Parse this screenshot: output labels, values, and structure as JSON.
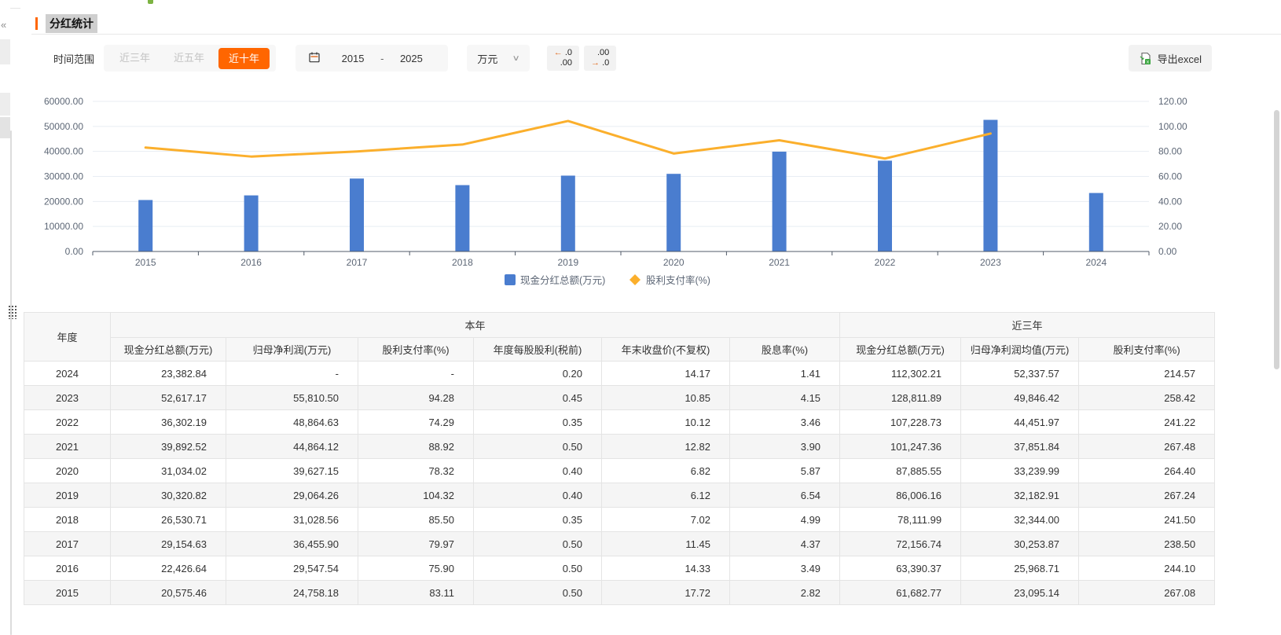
{
  "page": {
    "title": "分红统计",
    "collapse_icon": "«"
  },
  "toolbar": {
    "time_range_label": "时间范围",
    "range_options": [
      {
        "label": "近三年",
        "selected": false
      },
      {
        "label": "近五年",
        "selected": false
      },
      {
        "label": "近十年",
        "selected": true
      }
    ],
    "date_start": "2015",
    "date_separator": "-",
    "date_end": "2025",
    "unit_select": "万元",
    "unit_chevron": "∨",
    "decimal_decrease": {
      "arrow": "←",
      "top": ".0",
      "bottom": ".00"
    },
    "decimal_increase": {
      "top": ".00",
      "arrow": "→",
      "bottom": ".0"
    },
    "export_label": "导出excel"
  },
  "chart_data": {
    "type": "bar",
    "categories": [
      "2015",
      "2016",
      "2017",
      "2018",
      "2019",
      "2020",
      "2021",
      "2022",
      "2023",
      "2024"
    ],
    "series": [
      {
        "name": "现金分红总额(万元)",
        "type": "bar",
        "axis": "left",
        "color": "#4a7dcf",
        "values": [
          20575.46,
          22426.64,
          29154.63,
          26530.71,
          30320.82,
          31034.02,
          39892.52,
          36302.19,
          52617.17,
          23382.84
        ]
      },
      {
        "name": "股利支付率(%)",
        "type": "line",
        "axis": "right",
        "color": "#fbaf2c",
        "values": [
          83.11,
          75.9,
          79.97,
          85.5,
          104.32,
          78.32,
          88.92,
          74.29,
          94.28,
          null
        ]
      }
    ],
    "left_axis": {
      "min": 0,
      "max": 60000,
      "step": 10000
    },
    "right_axis": {
      "min": 0,
      "max": 120,
      "step": 20
    },
    "grid": true,
    "legend_position": "bottom"
  },
  "table": {
    "year_header": "年度",
    "col_groups": [
      {
        "label": "本年",
        "span": 6
      },
      {
        "label": "近三年",
        "span": 3
      }
    ],
    "columns": [
      "现金分红总额(万元)",
      "归母净利润(万元)",
      "股利支付率(%)",
      "年度每股股利(税前)",
      "年末收盘价(不复权)",
      "股息率(%)",
      "现金分红总额(万元)",
      "归母净利润均值(万元)",
      "股利支付率(%)"
    ],
    "rows": [
      [
        "2024",
        "23,382.84",
        "-",
        "-",
        "0.20",
        "14.17",
        "1.41",
        "112,302.21",
        "52,337.57",
        "214.57"
      ],
      [
        "2023",
        "52,617.17",
        "55,810.50",
        "94.28",
        "0.45",
        "10.85",
        "4.15",
        "128,811.89",
        "49,846.42",
        "258.42"
      ],
      [
        "2022",
        "36,302.19",
        "48,864.63",
        "74.29",
        "0.35",
        "10.12",
        "3.46",
        "107,228.73",
        "44,451.97",
        "241.22"
      ],
      [
        "2021",
        "39,892.52",
        "44,864.12",
        "88.92",
        "0.50",
        "12.82",
        "3.90",
        "101,247.36",
        "37,851.84",
        "267.48"
      ],
      [
        "2020",
        "31,034.02",
        "39,627.15",
        "78.32",
        "0.40",
        "6.82",
        "5.87",
        "87,885.55",
        "33,239.99",
        "264.40"
      ],
      [
        "2019",
        "30,320.82",
        "29,064.26",
        "104.32",
        "0.40",
        "6.12",
        "6.54",
        "86,006.16",
        "32,182.91",
        "267.24"
      ],
      [
        "2018",
        "26,530.71",
        "31,028.56",
        "85.50",
        "0.35",
        "7.02",
        "4.99",
        "78,111.99",
        "32,344.00",
        "241.50"
      ],
      [
        "2017",
        "29,154.63",
        "36,455.90",
        "79.97",
        "0.50",
        "11.45",
        "4.37",
        "72,156.74",
        "30,253.87",
        "238.50"
      ],
      [
        "2016",
        "22,426.64",
        "29,547.54",
        "75.90",
        "0.50",
        "14.33",
        "3.49",
        "63,390.37",
        "25,968.71",
        "244.10"
      ],
      [
        "2015",
        "20,575.46",
        "24,758.18",
        "83.11",
        "0.50",
        "17.72",
        "2.82",
        "61,682.77",
        "23,095.14",
        "267.08"
      ]
    ]
  },
  "colors": {
    "accent_orange": "#ff6600",
    "bar_blue": "#4a7dcf",
    "line_yellow": "#fbaf2c",
    "grid_line": "#e8edf3",
    "axis_text": "#5d6776",
    "excel_green": "#3da742"
  }
}
